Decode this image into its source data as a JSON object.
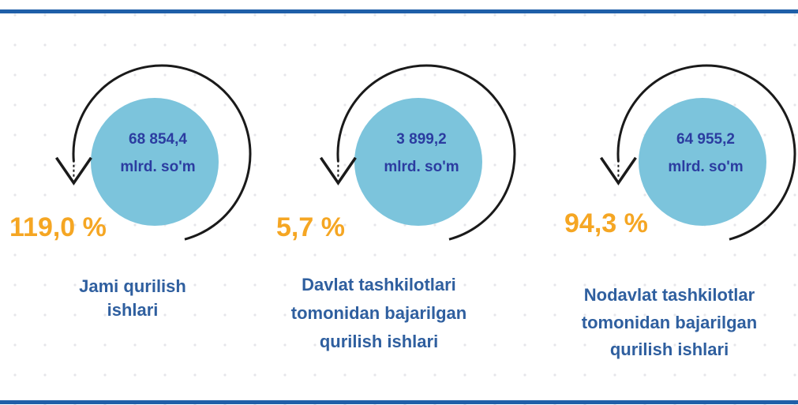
{
  "items": [
    {
      "value": "68 854,4",
      "unit": "mlrd. so'm",
      "percent": "119,0 %",
      "label": [
        "Jami qurilish",
        "ishlari"
      ]
    },
    {
      "value": "3 899,2",
      "unit": "mlrd. so'm",
      "percent": "5,7 %",
      "label": [
        "Davlat tashkilotlari",
        "tomonidan bajarilgan",
        "qurilish ishlari"
      ]
    },
    {
      "value": "64 955,2",
      "unit": "mlrd. so'm",
      "percent": "94,3 %",
      "label": [
        "Nodavlat tashkilotlar",
        "tomonidan bajarilgan",
        "qurilish ishlari"
      ]
    }
  ]
}
